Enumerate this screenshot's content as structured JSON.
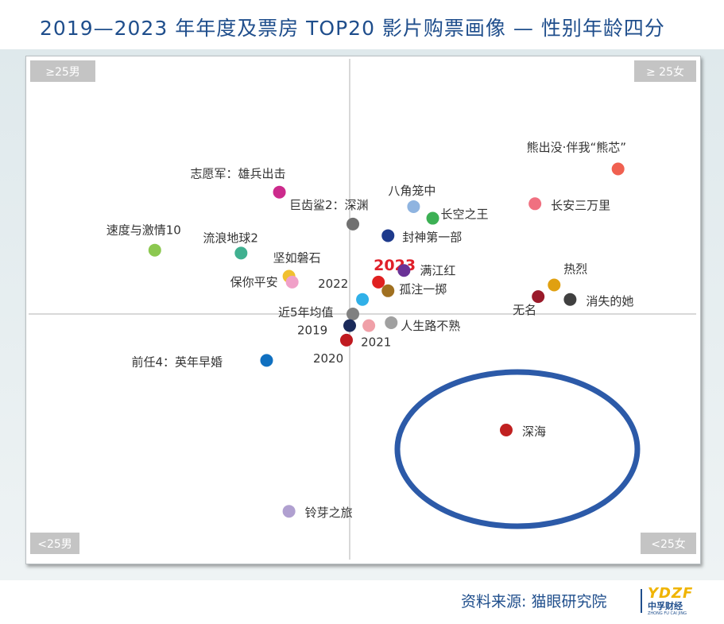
{
  "title": "2019—2023 年年度及票房 TOP20 影片购票画像 — 性别年龄四分",
  "source": "资料来源: 猫眼研究院",
  "logo": {
    "mark": "YDZF",
    "cn": "中孚财经",
    "pinyin": "ZHONG FU CAI JING"
  },
  "colors": {
    "title": "#1f4e8c",
    "highlight_ellipse": "#2c5aa8",
    "highlight_label": "#e0202a"
  },
  "chart_data": {
    "type": "scatter",
    "quadrant_labels": {
      "top_left": "≥25男",
      "top_right": "≥ 25女",
      "bottom_left": "<25男",
      "bottom_right": "<25女"
    },
    "xlim": [
      -10,
      10
    ],
    "ylim": [
      -10,
      10
    ],
    "grid": false,
    "highlighted_point": "深海",
    "points": [
      {
        "label": "熊出没·伴我“熊芯”",
        "x": 8.4,
        "y": 5.0,
        "color": "#f06050"
      },
      {
        "label": "志愿军：雄兵出击",
        "x": -2.2,
        "y": 4.2,
        "color": "#cc2a8c"
      },
      {
        "label": "巨齿鲨2：深渊",
        "x": 0.1,
        "y": 3.1,
        "color": "#707070"
      },
      {
        "label": "八角笼中",
        "x": 2.0,
        "y": 3.7,
        "color": "#8fb4e0"
      },
      {
        "label": "长空之王",
        "x": 2.6,
        "y": 3.3,
        "color": "#3cb054"
      },
      {
        "label": "长安三万里",
        "x": 5.8,
        "y": 3.8,
        "color": "#f07080"
      },
      {
        "label": "封神第一部",
        "x": 1.2,
        "y": 2.7,
        "color": "#1e3a8c"
      },
      {
        "label": "速度与激情10",
        "x": -6.1,
        "y": 2.2,
        "color": "#8cc850"
      },
      {
        "label": "流浪地球2",
        "x": -3.4,
        "y": 2.1,
        "color": "#40b090"
      },
      {
        "label": "坚如磐石",
        "x": -1.9,
        "y": 1.3,
        "color": "#f0c030"
      },
      {
        "label": "保你平安",
        "x": -1.8,
        "y": 1.1,
        "color": "#f0a0c8"
      },
      {
        "label": "2023",
        "x": 0.9,
        "y": 1.1,
        "color": "#e02020",
        "emphasis": true
      },
      {
        "label": "满江红",
        "x": 1.7,
        "y": 1.5,
        "color": "#6a3296"
      },
      {
        "label": "2022",
        "x": 0.4,
        "y": 0.5,
        "color": "#30b0e8"
      },
      {
        "label": "孤注一掷",
        "x": 1.2,
        "y": 0.8,
        "color": "#a07020"
      },
      {
        "label": "近5年均值",
        "x": 0.1,
        "y": 0.0,
        "color": "#808080"
      },
      {
        "label": "热烈",
        "x": 6.4,
        "y": 1.0,
        "color": "#e0a010"
      },
      {
        "label": "无名",
        "x": 5.9,
        "y": 0.6,
        "color": "#9a1a2a"
      },
      {
        "label": "消失的她",
        "x": 6.9,
        "y": 0.5,
        "color": "#404040"
      },
      {
        "label": "2019",
        "x": 0.0,
        "y": -0.4,
        "color": "#1a2a5a"
      },
      {
        "label": "2021",
        "x": 0.6,
        "y": -0.4,
        "color": "#f0a0a8"
      },
      {
        "label": "人生路不熟",
        "x": 1.3,
        "y": -0.3,
        "color": "#a0a0a0"
      },
      {
        "label": "2020",
        "x": -0.1,
        "y": -0.9,
        "color": "#c01a20"
      },
      {
        "label": "前任4：英年早婚",
        "x": -2.6,
        "y": -1.6,
        "color": "#1070c0"
      },
      {
        "label": "深海",
        "x": 4.9,
        "y": -4.0,
        "color": "#c02020"
      },
      {
        "label": "铃芽之旅",
        "x": -1.9,
        "y": -6.8,
        "color": "#b0a0d0"
      }
    ]
  }
}
